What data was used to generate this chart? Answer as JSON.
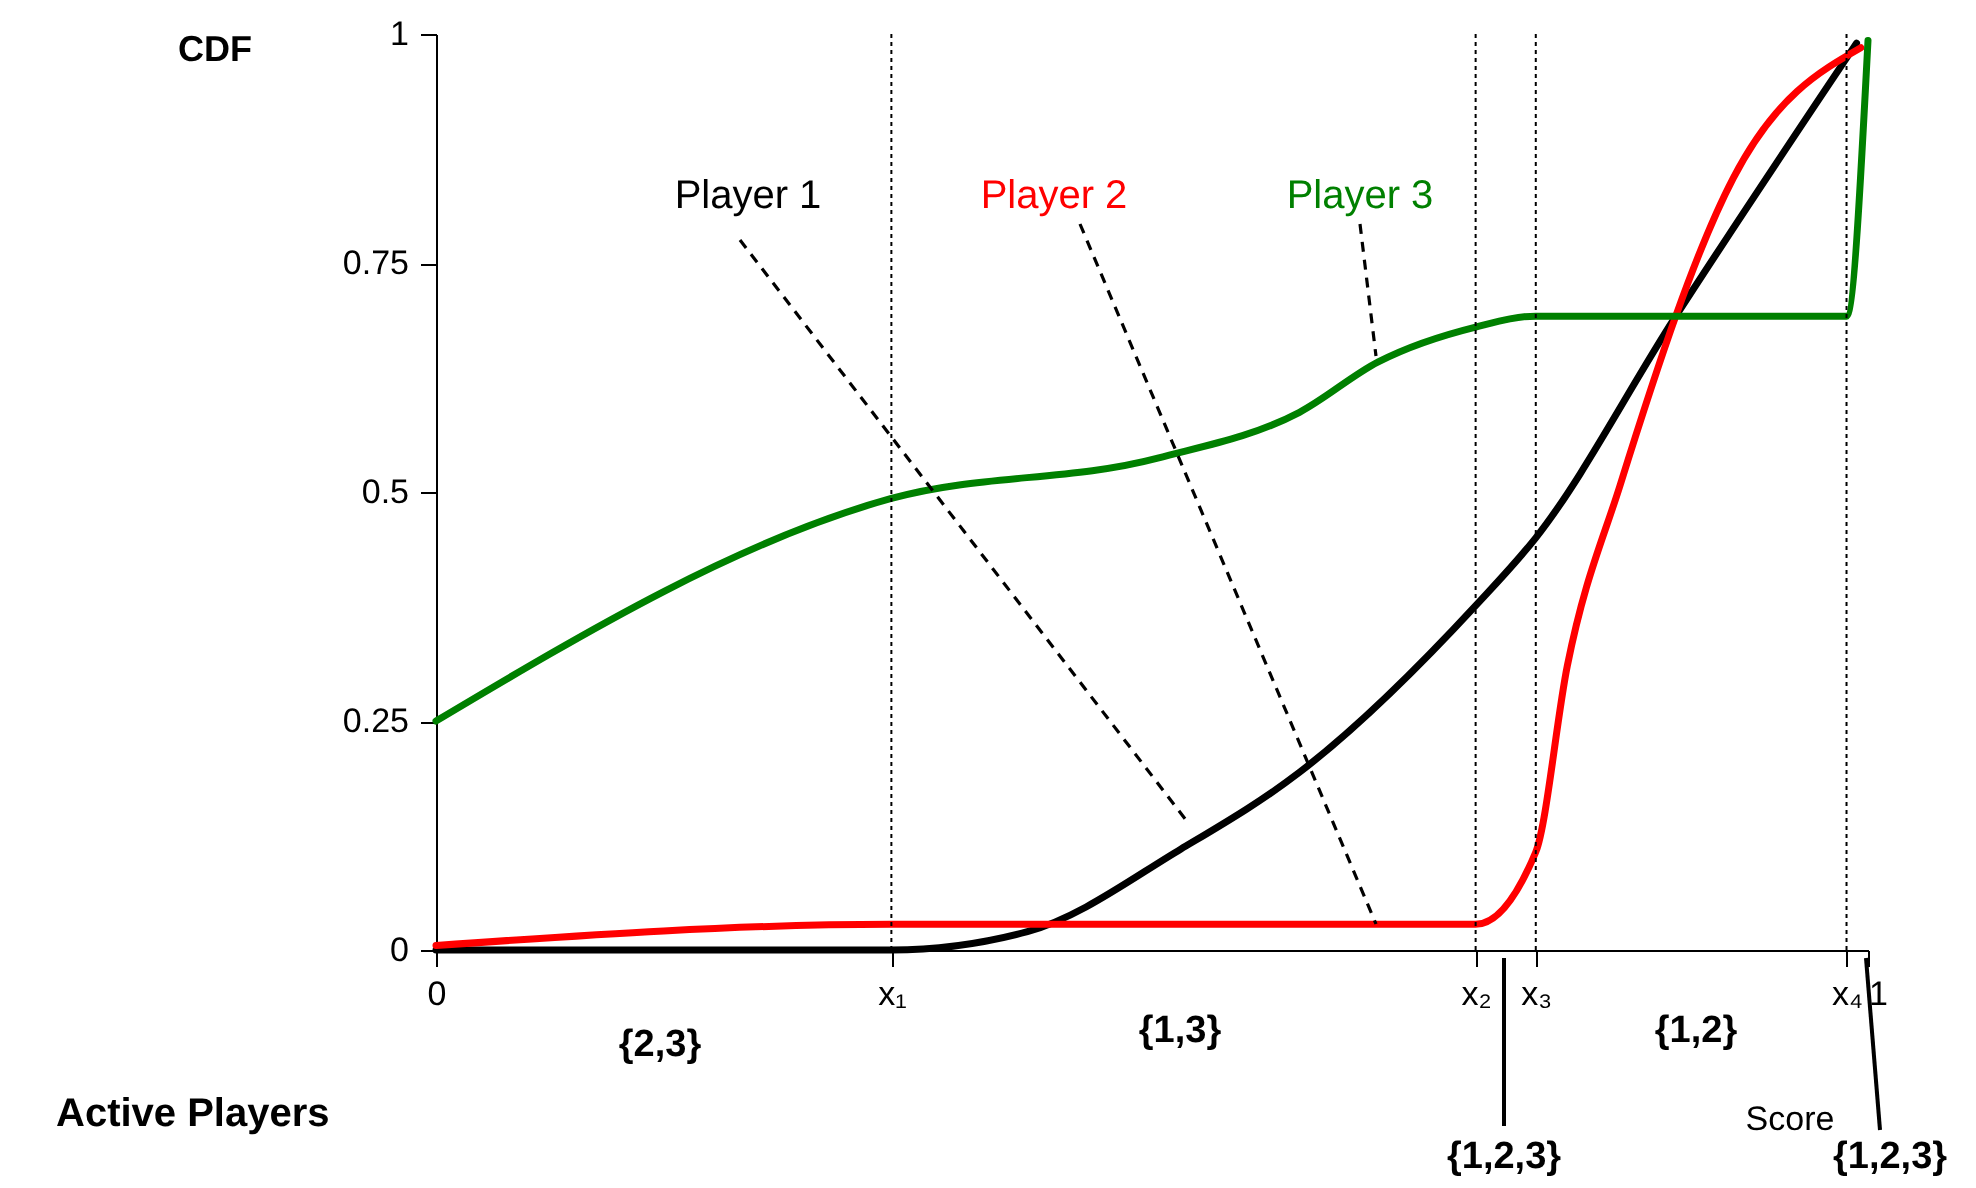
{
  "chart_data": {
    "type": "line",
    "ylabel": "CDF",
    "xlim": [
      0,
      1
    ],
    "xticks": [
      0,
      {
        "value": 0.318,
        "label": "x₁"
      },
      {
        "value": 0.726,
        "label": "x₂"
      },
      {
        "value": 0.768,
        "label": "x₃"
      },
      {
        "value": 0.985,
        "label": "x₄"
      },
      1
    ],
    "ylim": [
      0,
      1
    ],
    "yticks": [
      0,
      0.25,
      0.5,
      0.75,
      1
    ],
    "series": [
      {
        "name": "Player 1",
        "color": "#000000",
        "x": [
          0,
          0.318,
          0.413,
          0.52,
          0.603,
          0.726,
          0.768,
          0.865,
          0.992
        ],
        "values": [
          0,
          0,
          0.02,
          0.11,
          0.194,
          0.376,
          0.45,
          0.69,
          0.99
        ]
      },
      {
        "name": "Player 2",
        "color": "#ff0000",
        "x": [
          0,
          0.318,
          0.726,
          0.768,
          0.79,
          0.827,
          0.906,
          0.995
        ],
        "values": [
          0.005,
          0.028,
          0.028,
          0.107,
          0.31,
          0.508,
          0.843,
          0.985
        ]
      },
      {
        "name": "Player 3",
        "color": "#008000",
        "x": [
          0,
          0.318,
          0.504,
          0.603,
          0.658,
          0.726,
          0.768,
          0.985,
          1
        ],
        "values": [
          0.25,
          0.493,
          0.537,
          0.587,
          0.642,
          0.68,
          0.692,
          0.692,
          0.993
        ]
      }
    ],
    "ref_lines": [
      {
        "axis": "x",
        "value": 0.318,
        "line_style": "dotted",
        "color": "#000000"
      },
      {
        "axis": "x",
        "value": 0.726,
        "line_style": "dotted",
        "color": "#000000"
      },
      {
        "axis": "x",
        "value": 0.768,
        "line_style": "dotted",
        "color": "#000000"
      },
      {
        "axis": "x",
        "value": 0.985,
        "line_style": "dotted",
        "color": "#000000"
      }
    ],
    "annotations": [
      "Active Players",
      "{2,3}",
      "{1,3}",
      "{1,2}",
      "{1,2,3}",
      "Score",
      "{1,2,3}"
    ],
    "grid": false,
    "marker": "none",
    "line_style": "solid"
  }
}
